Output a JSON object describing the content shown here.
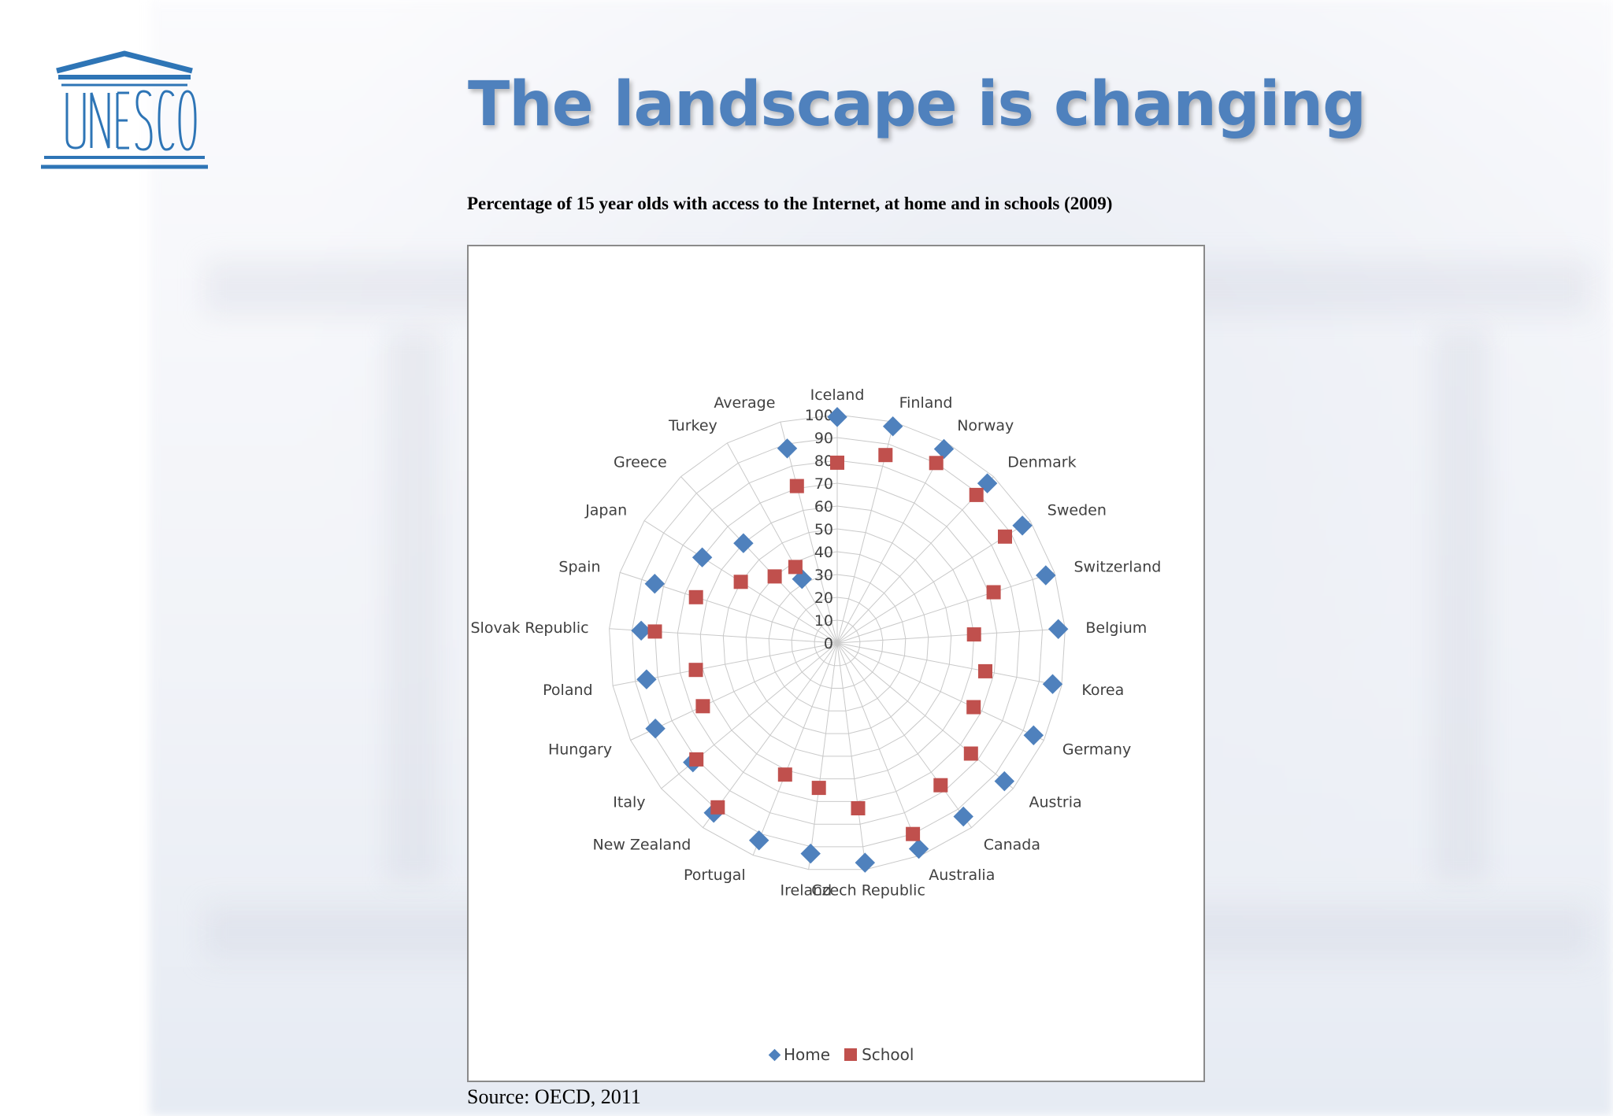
{
  "slide": {
    "title": "The landscape is changing",
    "logo_text": "UNESCO",
    "logo_icon": "unesco-temple-icon",
    "source": "Source: OECD, 2011"
  },
  "colors": {
    "title": "#4f81bd",
    "home": "#4f81bd",
    "school": "#c0504d",
    "grid": "#c9c9c9"
  },
  "chart_data": {
    "type": "radar",
    "title": "Percentage of 15 year olds with access to the Internet, at home and in schools (2009)",
    "categories": [
      "Iceland",
      "Finland",
      "Norway",
      "Denmark",
      "Sweden",
      "Switzerland",
      "Belgium",
      "Korea",
      "Germany",
      "Austria",
      "Canada",
      "Australia",
      "Czech Republic",
      "Ireland",
      "Portugal",
      "New Zealand",
      "Italy",
      "Hungary",
      "Poland",
      "Slovak Republic",
      "Spain",
      "Japan",
      "Greece",
      "Turkey",
      "Average"
    ],
    "r_ticks": [
      "0",
      "10",
      "20",
      "30",
      "40",
      "50",
      "60",
      "70",
      "80",
      "90",
      "100"
    ],
    "r_range": [
      0,
      100
    ],
    "grid": true,
    "legend_position": "bottom",
    "series": [
      {
        "name": "Home",
        "marker": "diamond",
        "values": [
          99,
          98,
          97,
          96,
          96,
          96,
          97,
          96,
          95,
          95,
          94,
          97,
          97,
          93,
          93,
          92,
          82,
          88,
          85,
          86,
          84,
          70,
          60,
          32,
          88
        ]
      },
      {
        "name": "School",
        "marker": "square",
        "values": [
          79,
          85,
          90,
          89,
          87,
          72,
          60,
          66,
          66,
          76,
          77,
          90,
          73,
          64,
          62,
          89,
          80,
          65,
          63,
          80,
          65,
          50,
          40,
          38,
          71
        ]
      }
    ]
  }
}
